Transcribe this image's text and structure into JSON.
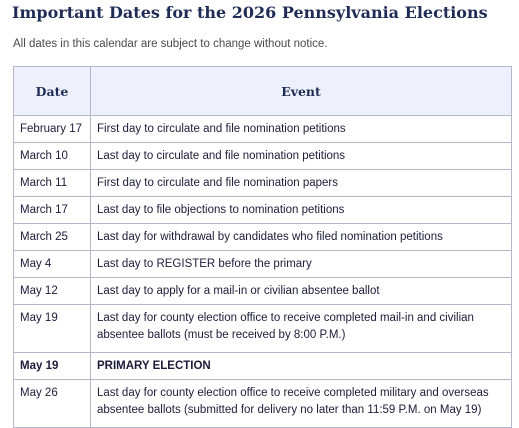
{
  "page": {
    "title": "Important Dates for the 2026 Pennsylvania Elections",
    "subtitle": "All dates in this calendar are subject to change without notice."
  },
  "table": {
    "headers": {
      "date": "Date",
      "event": "Event"
    },
    "rows": [
      {
        "date": "February 17",
        "event": "First day to circulate and file nomination petitions"
      },
      {
        "date": "March 10",
        "event": "Last day to circulate and file nomination petitions"
      },
      {
        "date": "March 11",
        "event": "First day to circulate and file nomination papers"
      },
      {
        "date": "March 17",
        "event": "Last day to file objections to nomination petitions"
      },
      {
        "date": "March 25",
        "event": "Last day for withdrawal by candidates who filed nomination petitions"
      },
      {
        "date": "May 4",
        "event": "Last day to REGISTER before the primary"
      },
      {
        "date": "May 12",
        "event": "Last day to apply for a mail-in or civilian absentee ballot"
      },
      {
        "date": "May 19",
        "event": "Last day for county election office to receive completed mail-in and civilian absentee ballots (must be received by 8:00 P.M.)"
      },
      {
        "date": "May 19",
        "event": "PRIMARY ELECTION"
      },
      {
        "date": "May 26",
        "event": "Last day for county election office to receive completed military and overseas absentee ballots (submitted for delivery no later than 11:59 P.M. on May 19)"
      }
    ]
  }
}
